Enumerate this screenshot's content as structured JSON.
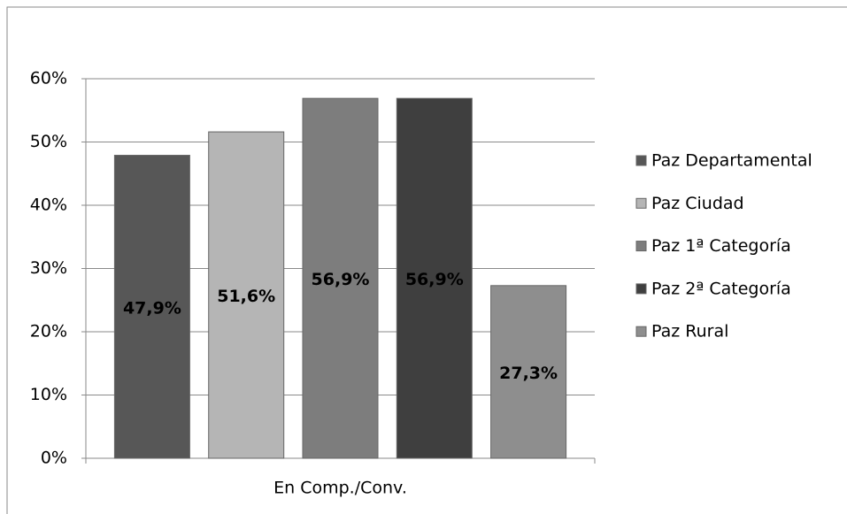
{
  "chart_data": {
    "type": "bar",
    "categories": [
      "En Comp./Conv."
    ],
    "series": [
      {
        "name": "Paz Departamental",
        "color": "#575757",
        "values": [
          47.9
        ],
        "value_labels": [
          "47,9%"
        ]
      },
      {
        "name": "Paz Ciudad",
        "color": "#b5b5b5",
        "values": [
          51.6
        ],
        "value_labels": [
          "51,6%"
        ]
      },
      {
        "name": "Paz 1ª Categoría",
        "color": "#7d7d7d",
        "values": [
          56.9
        ],
        "value_labels": [
          "56,9%"
        ]
      },
      {
        "name": "Paz 2ª Categoría",
        "color": "#3f3f3f",
        "values": [
          56.9
        ],
        "value_labels": [
          "56,9%"
        ]
      },
      {
        "name": "Paz Rural",
        "color": "#8e8e8e",
        "values": [
          27.3
        ],
        "value_labels": [
          "27,3%"
        ]
      }
    ],
    "ylim": [
      0,
      60
    ],
    "yticks": [
      {
        "value": 0,
        "label": "0%"
      },
      {
        "value": 10,
        "label": "10%"
      },
      {
        "value": 20,
        "label": "20%"
      },
      {
        "value": 30,
        "label": "30%"
      },
      {
        "value": 40,
        "label": "40%"
      },
      {
        "value": 50,
        "label": "50%"
      },
      {
        "value": 60,
        "label": "60%"
      }
    ],
    "grid": true,
    "legend": "right"
  }
}
